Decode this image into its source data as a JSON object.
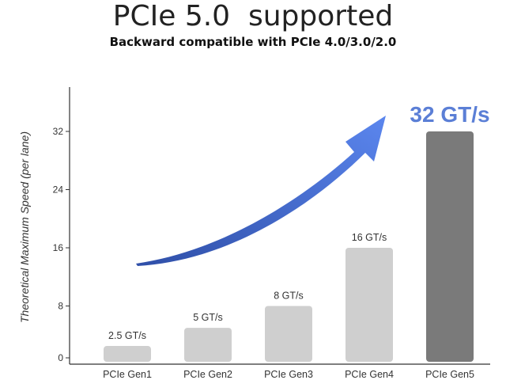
{
  "header": {
    "title": "PCIe 5.0  supported",
    "subtitle": "Backward compatible with PCIe 4.0/3.0/2.0"
  },
  "chart_data": {
    "type": "bar",
    "ylabel": "Theoretical Maximum Speed (per lane)",
    "categories": [
      "PCIe Gen1",
      "PCIe Gen2",
      "PCIe Gen3",
      "PCIe Gen4",
      "PCIe Gen5"
    ],
    "values": [
      2.5,
      5,
      8,
      16,
      32
    ],
    "data_labels": [
      "2.5 GT/s",
      "5 GT/s",
      "8 GT/s",
      "16 GT/s",
      "32 GT/s"
    ],
    "y_ticks": [
      0,
      8,
      16,
      24,
      32
    ],
    "ylim": [
      0,
      38
    ],
    "grid": false,
    "colors": {
      "bar": "#cfcfcf",
      "highlight_bar": "#7a7a7a",
      "highlight_label": "#5b7fd6",
      "arrow": "#4a72d9",
      "axis": "#333333",
      "text": "#333333"
    },
    "highlight_index": 4
  }
}
